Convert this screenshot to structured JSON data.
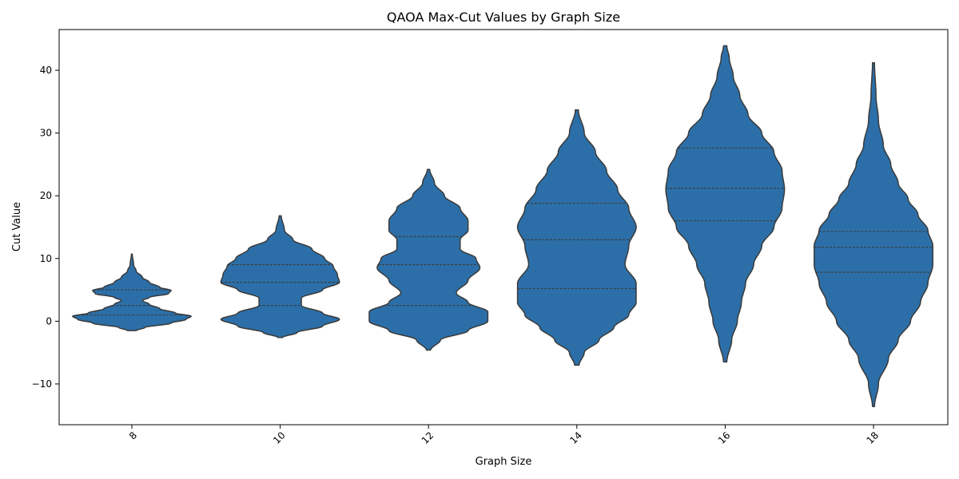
{
  "chart_data": {
    "type": "violin",
    "title": "QAOA Max-Cut Values by Graph Size",
    "xlabel": "Graph Size",
    "ylabel": "Cut Value",
    "categories": [
      "8",
      "10",
      "12",
      "14",
      "16",
      "18"
    ],
    "ylim": [
      -16.5,
      46.5
    ],
    "yticks": [
      -10,
      0,
      10,
      20,
      30,
      40
    ],
    "grid": false,
    "fill_color": "#2c6fa8",
    "edge_color": "#3a3a3a",
    "violins": [
      {
        "category": "8",
        "quartiles": [
          1.0,
          2.5,
          5.0
        ],
        "profile": [
          [
            -1.5,
            0.05
          ],
          [
            -1.0,
            0.15
          ],
          [
            -0.3,
            0.45
          ],
          [
            0.3,
            0.62
          ],
          [
            0.8,
            0.68
          ],
          [
            1.3,
            0.5
          ],
          [
            2.0,
            0.32
          ],
          [
            2.7,
            0.2
          ],
          [
            3.3,
            0.12
          ],
          [
            3.8,
            0.2
          ],
          [
            4.4,
            0.42
          ],
          [
            4.9,
            0.45
          ],
          [
            5.4,
            0.32
          ],
          [
            6.2,
            0.2
          ],
          [
            7.0,
            0.12
          ],
          [
            8.0,
            0.05
          ],
          [
            9.0,
            0.02
          ],
          [
            10.7,
            0.005
          ]
        ]
      },
      {
        "category": "10",
        "quartiles": [
          2.5,
          6.2,
          9.0
        ],
        "profile": [
          [
            -2.6,
            0.01
          ],
          [
            -1.8,
            0.08
          ],
          [
            -0.8,
            0.2
          ],
          [
            0.3,
            0.28
          ],
          [
            1.3,
            0.2
          ],
          [
            2.5,
            0.1
          ],
          [
            3.7,
            0.1
          ],
          [
            5.0,
            0.2
          ],
          [
            6.2,
            0.28
          ],
          [
            7.4,
            0.27
          ],
          [
            8.8,
            0.25
          ],
          [
            10.0,
            0.21
          ],
          [
            11.5,
            0.15
          ],
          [
            13.0,
            0.06
          ],
          [
            14.5,
            0.02
          ],
          [
            16.8,
            0.005
          ]
        ]
      },
      {
        "category": "12",
        "quartiles": [
          2.5,
          9.0,
          13.5
        ],
        "profile": [
          [
            -4.6,
            0.005
          ],
          [
            -3.0,
            0.03
          ],
          [
            -1.5,
            0.1
          ],
          [
            0.0,
            0.15
          ],
          [
            1.5,
            0.15
          ],
          [
            3.0,
            0.1
          ],
          [
            4.5,
            0.07
          ],
          [
            6.5,
            0.1
          ],
          [
            8.5,
            0.13
          ],
          [
            10.0,
            0.12
          ],
          [
            11.5,
            0.08
          ],
          [
            13.0,
            0.08
          ],
          [
            14.5,
            0.1
          ],
          [
            16.0,
            0.1
          ],
          [
            18.0,
            0.08
          ],
          [
            20.0,
            0.04
          ],
          [
            22.0,
            0.015
          ],
          [
            24.2,
            0.003
          ]
        ]
      },
      {
        "category": "14",
        "quartiles": [
          5.2,
          13.0,
          18.8
        ],
        "profile": [
          [
            -7.0,
            0.003
          ],
          [
            -5.0,
            0.01
          ],
          [
            -3.0,
            0.03
          ],
          [
            -1.0,
            0.05
          ],
          [
            1.0,
            0.07
          ],
          [
            3.0,
            0.08
          ],
          [
            6.0,
            0.08
          ],
          [
            9.0,
            0.065
          ],
          [
            12.0,
            0.07
          ],
          [
            15.0,
            0.08
          ],
          [
            18.0,
            0.07
          ],
          [
            21.0,
            0.055
          ],
          [
            24.0,
            0.04
          ],
          [
            27.0,
            0.025
          ],
          [
            30.0,
            0.01
          ],
          [
            33.7,
            0.002
          ]
        ]
      },
      {
        "category": "16",
        "quartiles": [
          16.0,
          21.2,
          27.6
        ],
        "profile": [
          [
            -6.5,
            0.002
          ],
          [
            -3.0,
            0.008
          ],
          [
            0.0,
            0.015
          ],
          [
            3.0,
            0.02
          ],
          [
            6.0,
            0.025
          ],
          [
            9.0,
            0.035
          ],
          [
            12.0,
            0.045
          ],
          [
            15.0,
            0.06
          ],
          [
            18.0,
            0.07
          ],
          [
            21.0,
            0.073
          ],
          [
            24.0,
            0.07
          ],
          [
            27.0,
            0.06
          ],
          [
            30.0,
            0.045
          ],
          [
            33.0,
            0.028
          ],
          [
            36.0,
            0.018
          ],
          [
            39.0,
            0.01
          ],
          [
            42.0,
            0.005
          ],
          [
            43.9,
            0.002
          ]
        ]
      },
      {
        "category": "18",
        "quartiles": [
          7.8,
          11.8,
          14.3
        ],
        "profile": [
          [
            -13.6,
            0.002
          ],
          [
            -10.0,
            0.01
          ],
          [
            -6.0,
            0.03
          ],
          [
            -3.0,
            0.05
          ],
          [
            0.0,
            0.075
          ],
          [
            3.0,
            0.095
          ],
          [
            6.0,
            0.11
          ],
          [
            9.0,
            0.12
          ],
          [
            12.0,
            0.12
          ],
          [
            14.5,
            0.11
          ],
          [
            17.0,
            0.09
          ],
          [
            19.5,
            0.07
          ],
          [
            22.0,
            0.05
          ],
          [
            25.0,
            0.035
          ],
          [
            28.0,
            0.02
          ],
          [
            32.0,
            0.01
          ],
          [
            36.0,
            0.005
          ],
          [
            41.2,
            0.002
          ]
        ]
      }
    ]
  }
}
